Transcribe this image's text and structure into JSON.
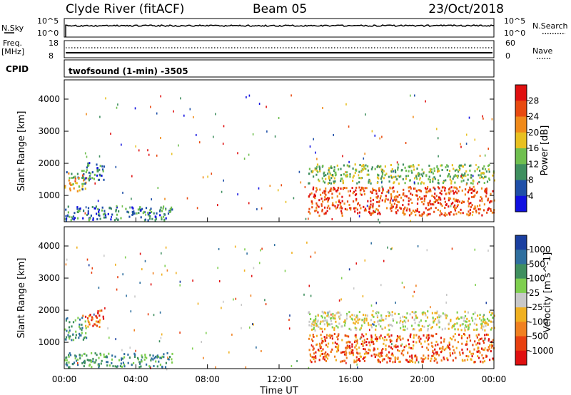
{
  "header": {
    "site": "Clyde River (fitACF)",
    "beam": "Beam 05",
    "date": "23/Oct/2018"
  },
  "status_panels": {
    "nsky_label": "N.Sky",
    "nsky_top": "10^5",
    "nsky_bottom": "10^0",
    "nsearch_label": "N.Search",
    "nsearch_top": "10^5",
    "nsearch_bottom": "10^0",
    "freq_label": "Freq.",
    "freq_unit": "[MHz]",
    "freq_top": "18",
    "freq_bottom": "8",
    "nave_label": "Nave",
    "nave_top": "60",
    "nave_bottom": "0",
    "cpid_label": "CPID",
    "cpid_value": "twofsound (1-min) -3505"
  },
  "time_axis": {
    "label": "Time UT",
    "ticks": [
      "00:00",
      "04:00",
      "08:00",
      "12:00",
      "16:00",
      "20:00",
      "00:00"
    ]
  },
  "chart_data": [
    {
      "type": "heatmap",
      "title": "",
      "xlabel": "Time UT",
      "ylabel": "Slant Range [km]",
      "x_range_hours": [
        0,
        24
      ],
      "ylim": [
        180,
        4600
      ],
      "y_ticks": [
        1000,
        2000,
        3000,
        4000
      ],
      "colorbar": {
        "label": "Power [dB]",
        "ticks": [
          "4",
          "8",
          "12",
          "16",
          "20",
          "24",
          "28"
        ],
        "colors": [
          "#1010e0",
          "#1f4fa8",
          "#3f8f5f",
          "#6fbf4f",
          "#e8c020",
          "#f08a1a",
          "#e84a10",
          "#e01010"
        ]
      },
      "echo_regions": [
        {
          "t_start": 0.0,
          "t_end": 1.2,
          "r_start": 1100,
          "r_end": 1800,
          "value": "mixed"
        },
        {
          "t_start": 0.9,
          "t_end": 2.2,
          "r_start": 1500,
          "r_end": 2050,
          "value": "weak"
        },
        {
          "t_start": 0.0,
          "t_end": 6.0,
          "r_start": 250,
          "r_end": 700,
          "value": "weak"
        },
        {
          "t_start": 13.6,
          "t_end": 24.0,
          "r_start": 1400,
          "r_end": 2000,
          "value": "moderate"
        },
        {
          "t_start": 13.6,
          "t_end": 24.0,
          "r_start": 400,
          "r_end": 1300,
          "value": "strong"
        }
      ]
    },
    {
      "type": "heatmap",
      "title": "",
      "xlabel": "Time UT",
      "ylabel": "Slant Range [km]",
      "x_range_hours": [
        0,
        24
      ],
      "ylim": [
        180,
        4600
      ],
      "y_ticks": [
        1000,
        2000,
        3000,
        4000
      ],
      "colorbar": {
        "label": "Velocity [m s^-1]",
        "ticks": [
          "1000",
          "500",
          "100",
          "25",
          "-25",
          "-100",
          "-500",
          "-1000"
        ],
        "colors": [
          "#1a3fa0",
          "#2f6f9f",
          "#3f8f5f",
          "#7fcf4f",
          "#c8c8c8",
          "#f0b020",
          "#f08020",
          "#e84010",
          "#e01010"
        ]
      },
      "echo_regions": [
        {
          "t_start": 0.0,
          "t_end": 1.2,
          "r_start": 1100,
          "r_end": 1800,
          "value": "positive"
        },
        {
          "t_start": 1.0,
          "t_end": 2.2,
          "r_start": 1500,
          "r_end": 2050,
          "value": "negative"
        },
        {
          "t_start": 0.0,
          "t_end": 6.0,
          "r_start": 250,
          "r_end": 700,
          "value": "positive"
        },
        {
          "t_start": 13.6,
          "t_end": 24.0,
          "r_start": 1400,
          "r_end": 2000,
          "value": "near-zero"
        },
        {
          "t_start": 13.6,
          "t_end": 24.0,
          "r_start": 400,
          "r_end": 1300,
          "value": "negative"
        }
      ]
    }
  ]
}
